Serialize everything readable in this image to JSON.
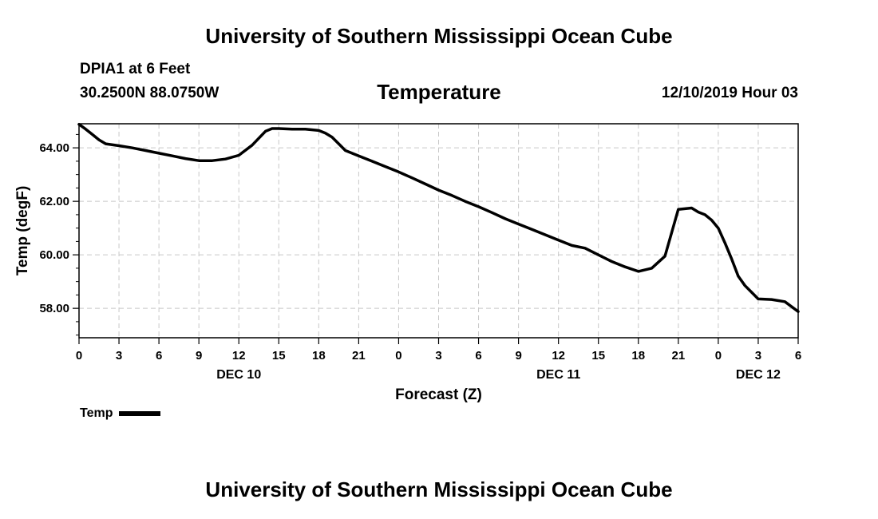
{
  "page": {
    "header_title": "University of Southern Mississippi Ocean Cube",
    "footer_title": "University of Southern Mississippi Ocean Cube",
    "station": "DPIA1 at 6 Feet",
    "coordinates": "30.2500N 88.0750W",
    "valid_time": "12/10/2019 Hour 03"
  },
  "chart_data": {
    "type": "line",
    "title": "Temperature",
    "xlabel": "Forecast (Z)",
    "ylabel": "Temp (degF)",
    "x_unit": "forecast hour since 00Z Dec 10",
    "xlim": [
      0,
      54
    ],
    "ylim": [
      56.9,
      64.9
    ],
    "yticks": [
      58,
      60,
      62,
      64
    ],
    "ytick_labels": [
      "58.00",
      "60.00",
      "62.00",
      "64.00"
    ],
    "xticks": [
      0,
      3,
      6,
      9,
      12,
      15,
      18,
      21,
      24,
      27,
      30,
      33,
      36,
      39,
      42,
      45,
      48,
      51,
      54
    ],
    "xtick_labels": [
      "0",
      "3",
      "6",
      "9",
      "12",
      "15",
      "18",
      "21",
      "0",
      "3",
      "6",
      "9",
      "12",
      "15",
      "18",
      "21",
      "0",
      "3",
      "6"
    ],
    "date_labels": [
      {
        "x": 12,
        "label": "DEC 10"
      },
      {
        "x": 36,
        "label": "DEC 11"
      },
      {
        "x": 51,
        "label": "DEC 12"
      }
    ],
    "grid": true,
    "legend": [
      {
        "name": "Temp",
        "color": "#000000"
      }
    ],
    "series": [
      {
        "name": "Temp",
        "color": "#000000",
        "x": [
          0,
          0.5,
          1,
          1.5,
          2,
          3,
          4,
          5,
          6,
          7,
          8,
          9,
          10,
          11,
          12,
          13,
          14,
          14.5,
          15,
          16,
          17,
          18,
          18.5,
          19,
          19.5,
          20,
          21,
          22,
          23,
          24,
          25,
          26,
          27,
          28,
          29,
          30,
          31,
          32,
          33,
          34,
          35,
          36,
          37,
          38,
          39,
          40,
          41,
          42,
          43,
          44,
          45,
          46,
          46.5,
          47,
          47.5,
          48,
          48.5,
          49,
          49.5,
          50,
          50.5,
          51,
          52,
          53,
          54
        ],
        "values": [
          64.88,
          64.7,
          64.5,
          64.3,
          64.15,
          64.08,
          64.0,
          63.9,
          63.8,
          63.7,
          63.6,
          63.52,
          63.52,
          63.58,
          63.72,
          64.1,
          64.62,
          64.72,
          64.72,
          64.7,
          64.7,
          64.65,
          64.55,
          64.4,
          64.15,
          63.9,
          63.7,
          63.5,
          63.3,
          63.1,
          62.88,
          62.65,
          62.42,
          62.22,
          62.0,
          61.8,
          61.58,
          61.35,
          61.15,
          60.95,
          60.75,
          60.55,
          60.35,
          60.25,
          60.0,
          59.75,
          59.55,
          59.38,
          59.5,
          59.95,
          61.7,
          61.75,
          61.6,
          61.5,
          61.3,
          61.0,
          60.45,
          59.85,
          59.2,
          58.85,
          58.6,
          58.35,
          58.33,
          58.25,
          57.88
        ]
      }
    ]
  }
}
